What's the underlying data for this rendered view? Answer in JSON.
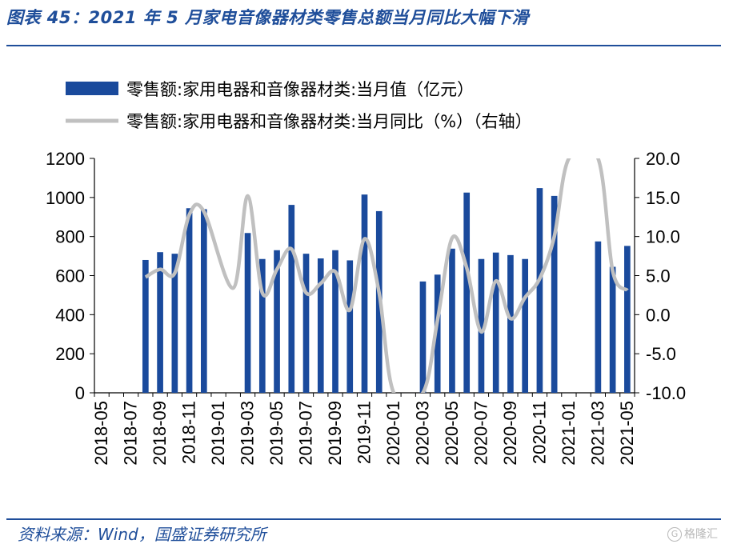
{
  "header": {
    "title": "图表 45：2021 年 5 月家电音像器材类零售总额当月同比大幅下滑"
  },
  "footer": {
    "source": "资料来源：Wind，国盛证券研究所",
    "watermark": "格隆汇",
    "watermark_mark": "G"
  },
  "colors": {
    "bar": "#1a4a9c",
    "line": "#c0c0c0",
    "title": "#1f4e9a"
  },
  "chart_data": {
    "type": "bar",
    "x": [
      "2018-05",
      "2018-06",
      "2018-07",
      "2018-08",
      "2018-09",
      "2018-10",
      "2018-11",
      "2018-12",
      "2019-01",
      "2019-02",
      "2019-03",
      "2019-04",
      "2019-05",
      "2019-06",
      "2019-07",
      "2019-08",
      "2019-09",
      "2019-10",
      "2019-11",
      "2019-12",
      "2020-01",
      "2020-02",
      "2020-03",
      "2020-04",
      "2020-05",
      "2020-06",
      "2020-07",
      "2020-08",
      "2020-09",
      "2020-10",
      "2020-11",
      "2020-12",
      "2021-01",
      "2021-02",
      "2021-03",
      "2021-04",
      "2021-05"
    ],
    "x_tick_labels": [
      "2018-05",
      "2018-07",
      "2018-09",
      "2018-11",
      "2019-01",
      "2019-03",
      "2019-05",
      "2019-07",
      "2019-09",
      "2019-11",
      "2020-01",
      "2020-03",
      "2020-05",
      "2020-07",
      "2020-09",
      "2020-11",
      "2021-01",
      "2021-03",
      "2021-05"
    ],
    "series": [
      {
        "name": "零售额:家用电器和音像器材类:当月值（亿元）",
        "type": "bar",
        "axis": "left",
        "values": [
          null,
          null,
          null,
          680,
          720,
          712,
          945,
          940,
          null,
          null,
          818,
          685,
          730,
          962,
          712,
          688,
          730,
          678,
          1015,
          930,
          null,
          null,
          570,
          605,
          738,
          1025,
          685,
          718,
          705,
          685,
          1048,
          1008,
          null,
          null,
          775,
          645,
          752
        ]
      },
      {
        "name": "零售额:家用电器和音像器材类:当月同比（%）（右轴）",
        "type": "line",
        "axis": "right",
        "values": [
          null,
          null,
          null,
          4.8,
          5.8,
          5.3,
          12.8,
          13.2,
          null,
          3.4,
          15.2,
          2.8,
          5.8,
          8.4,
          2.8,
          4.0,
          5.5,
          0.6,
          9.7,
          2.8,
          -10.0,
          null,
          -10.0,
          -0.7,
          9.8,
          6.0,
          -2.2,
          4.3,
          -0.5,
          2.2,
          4.6,
          10.0,
          20.0,
          null,
          20.0,
          5.6,
          3.1
        ]
      }
    ],
    "y_left": {
      "ylim": [
        0,
        1200
      ],
      "ticks": [
        "0",
        "200",
        "400",
        "600",
        "800",
        "1000",
        "1200"
      ]
    },
    "y_right": {
      "ylim": [
        -10,
        20
      ],
      "ticks": [
        "-10.0",
        "-5.0",
        "0.0",
        "5.0",
        "10.0",
        "15.0",
        "20.0"
      ]
    },
    "legend": "top-left",
    "grid": false
  }
}
